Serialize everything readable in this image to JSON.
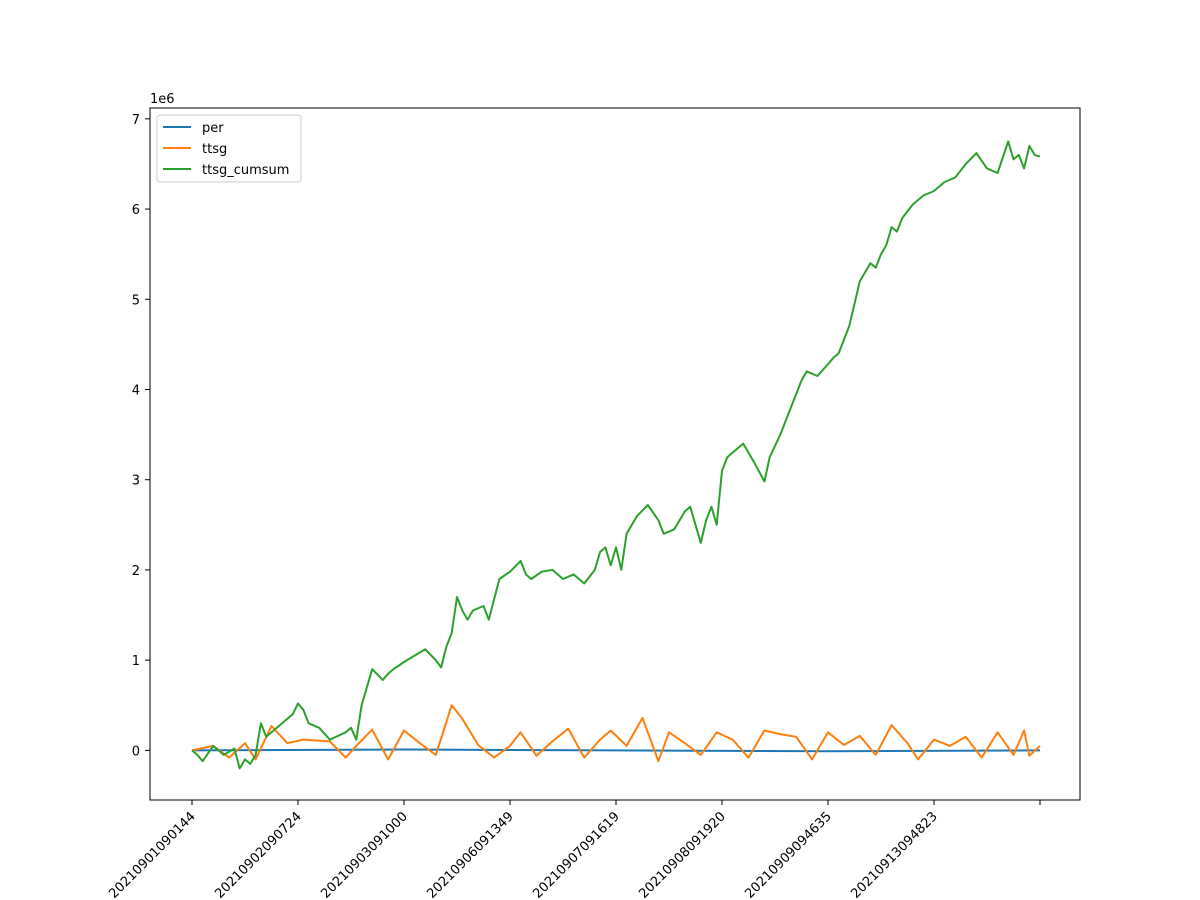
{
  "chart_data": {
    "type": "line",
    "title": "",
    "xlabel": "",
    "ylabel": "",
    "y_offset_label": "1e6",
    "y_scale_factor": 1000000,
    "ylim": [
      -0.55,
      7.12
    ],
    "yticks": [
      0,
      1,
      2,
      3,
      4,
      5,
      6,
      7
    ],
    "xticks": [
      "20210901090144",
      "20210902090724",
      "20210903091000",
      "20210906091349",
      "20210907091619",
      "20210908091920",
      "20210909094635",
      "20210913094823",
      ""
    ],
    "legend": {
      "position": "top-left",
      "entries": [
        "per",
        "ttsg",
        "ttsg_cumsum"
      ]
    },
    "colors": {
      "per": "#1f77b4",
      "ttsg": "#ff7f0e",
      "ttsg_cumsum": "#2ca02c"
    },
    "series": [
      {
        "name": "per",
        "x": [
          0,
          2,
          4,
          6,
          8
        ],
        "values": [
          0,
          0.01,
          0,
          -0.01,
          0
        ]
      },
      {
        "name": "ttsg",
        "x": [
          0,
          0.2,
          0.35,
          0.5,
          0.6,
          0.75,
          0.9,
          1.05,
          1.3,
          1.45,
          1.55,
          1.7,
          1.85,
          2.0,
          2.15,
          2.3,
          2.45,
          2.55,
          2.7,
          2.85,
          3.0,
          3.1,
          3.25,
          3.4,
          3.55,
          3.7,
          3.85,
          3.95,
          4.1,
          4.25,
          4.4,
          4.5,
          4.65,
          4.8,
          4.95,
          5.1,
          5.25,
          5.4,
          5.55,
          5.7,
          5.85,
          6.0,
          6.15,
          6.3,
          6.45,
          6.6,
          6.75,
          6.85,
          7.0,
          7.15,
          7.3,
          7.45,
          7.6,
          7.75,
          7.85,
          7.9,
          8.0
        ],
        "values": [
          0,
          0.05,
          -0.08,
          0.08,
          -0.1,
          0.27,
          0.08,
          0.12,
          0.1,
          -0.08,
          0.05,
          0.23,
          -0.1,
          0.22,
          0.08,
          -0.05,
          0.5,
          0.35,
          0.06,
          -0.08,
          0.05,
          0.2,
          -0.06,
          0.1,
          0.24,
          -0.08,
          0.12,
          0.22,
          0.05,
          0.36,
          -0.12,
          0.2,
          0.08,
          -0.05,
          0.2,
          0.12,
          -0.08,
          0.22,
          0.18,
          0.15,
          -0.1,
          0.2,
          0.06,
          0.16,
          -0.05,
          0.28,
          0.08,
          -0.1,
          0.12,
          0.05,
          0.15,
          -0.08,
          0.2,
          -0.05,
          0.22,
          -0.06,
          0.05
        ]
      },
      {
        "name": "ttsg_cumsum",
        "x": [
          0,
          0.05,
          0.1,
          0.2,
          0.3,
          0.4,
          0.45,
          0.5,
          0.55,
          0.6,
          0.65,
          0.7,
          0.8,
          0.95,
          1.0,
          1.05,
          1.1,
          1.2,
          1.3,
          1.45,
          1.5,
          1.55,
          1.6,
          1.65,
          1.7,
          1.8,
          1.85,
          1.9,
          2.0,
          2.1,
          2.2,
          2.3,
          2.35,
          2.4,
          2.45,
          2.5,
          2.55,
          2.6,
          2.65,
          2.75,
          2.8,
          2.9,
          3.0,
          3.1,
          3.15,
          3.2,
          3.3,
          3.4,
          3.5,
          3.6,
          3.7,
          3.8,
          3.85,
          3.9,
          3.95,
          4.0,
          4.05,
          4.1,
          4.15,
          4.2,
          4.3,
          4.4,
          4.45,
          4.55,
          4.65,
          4.7,
          4.75,
          4.8,
          4.85,
          4.9,
          4.95,
          5.0,
          5.05,
          5.1,
          5.2,
          5.3,
          5.4,
          5.45,
          5.55,
          5.65,
          5.7,
          5.75,
          5.8,
          5.9,
          6.0,
          6.05,
          6.1,
          6.2,
          6.3,
          6.4,
          6.45,
          6.5,
          6.55,
          6.6,
          6.65,
          6.7,
          6.8,
          6.9,
          7.0,
          7.1,
          7.2,
          7.3,
          7.4,
          7.5,
          7.6,
          7.7,
          7.75,
          7.8,
          7.85,
          7.9,
          7.95,
          8.0
        ],
        "values": [
          0,
          -0.05,
          -0.12,
          0.05,
          -0.05,
          0.02,
          -0.2,
          -0.1,
          -0.15,
          -0.05,
          0.3,
          0.15,
          0.25,
          0.4,
          0.52,
          0.45,
          0.3,
          0.25,
          0.12,
          0.2,
          0.25,
          0.12,
          0.5,
          0.7,
          0.9,
          0.78,
          0.85,
          0.9,
          0.98,
          1.05,
          1.12,
          1.0,
          0.92,
          1.15,
          1.3,
          1.7,
          1.55,
          1.45,
          1.55,
          1.6,
          1.45,
          1.9,
          1.98,
          2.1,
          1.95,
          1.9,
          1.98,
          2.0,
          1.9,
          1.95,
          1.85,
          2.0,
          2.2,
          2.25,
          2.05,
          2.25,
          2.0,
          2.4,
          2.5,
          2.6,
          2.72,
          2.55,
          2.4,
          2.45,
          2.65,
          2.7,
          2.5,
          2.3,
          2.55,
          2.7,
          2.5,
          3.1,
          3.25,
          3.3,
          3.4,
          3.2,
          2.98,
          3.25,
          3.5,
          3.8,
          3.95,
          4.1,
          4.2,
          4.15,
          4.28,
          4.35,
          4.4,
          4.7,
          5.2,
          5.4,
          5.35,
          5.5,
          5.6,
          5.8,
          5.75,
          5.9,
          6.05,
          6.15,
          6.2,
          6.3,
          6.35,
          6.5,
          6.62,
          6.45,
          6.4,
          6.75,
          6.55,
          6.6,
          6.45,
          6.7,
          6.6,
          6.58
        ]
      }
    ]
  }
}
